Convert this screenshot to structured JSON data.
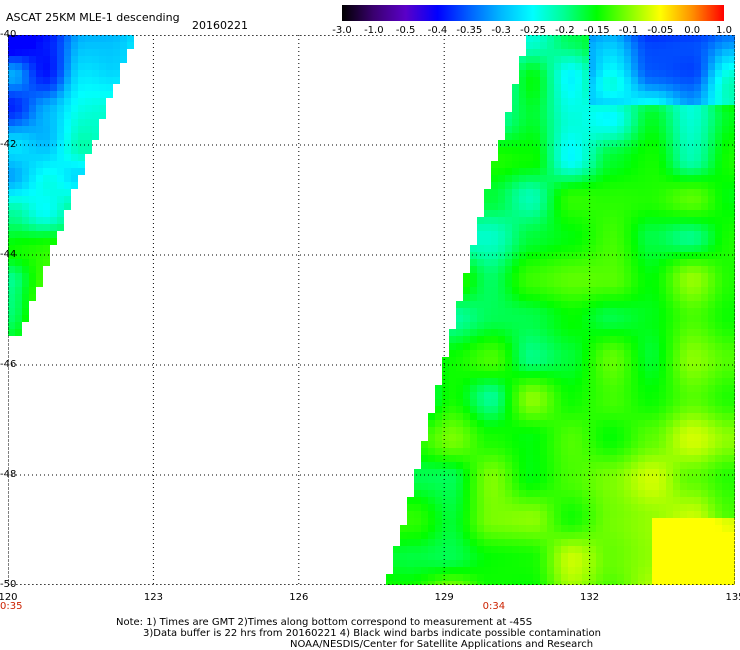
{
  "title": "ASCAT 25KM MLE-1 descending",
  "date": "20160221",
  "colorbar": {
    "labels": [
      "-3.0",
      "-1.0",
      "-0.5",
      "-0.4",
      "-0.35",
      "-0.3",
      "-0.25",
      "-0.2",
      "-0.15",
      "-0.1",
      "-0.05",
      "0.0",
      "1.0"
    ],
    "colors": [
      "#000000",
      "#3a0070",
      "#5a00c8",
      "#0000ff",
      "#0060ff",
      "#00b8ff",
      "#00ffff",
      "#00ff90",
      "#00ff00",
      "#80ff00",
      "#ffff00",
      "#ff9000",
      "#ff0000"
    ]
  },
  "axes": {
    "lat_ticks": [
      "-40",
      "-42",
      "-44",
      "-46",
      "-48",
      "-50"
    ],
    "lon_ticks": [
      "120",
      "123",
      "126",
      "129",
      "132",
      "135"
    ],
    "lat_range": [
      -50,
      -40
    ],
    "lon_range": [
      120,
      135
    ]
  },
  "times": [
    {
      "label": "0:35",
      "lon": 120
    },
    {
      "label": "0:34",
      "lon": 130
    }
  ],
  "notes": {
    "line1": "Note: 1) Times are GMT 2)Times along bottom correspond to measurement at -45S",
    "line2": "3)Data buffer is 22 hrs from 20160221 4) Black wind barbs indicate possible contamination",
    "line3": "NOAA/NESDIS/Center for Satellite Applications and Research"
  }
}
